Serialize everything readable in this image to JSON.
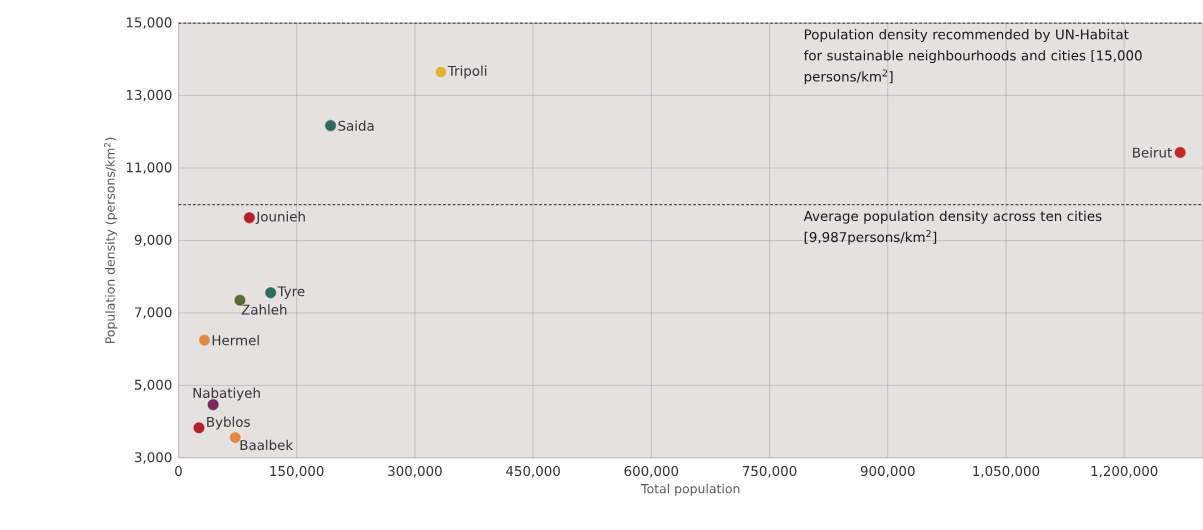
{
  "chart_data": {
    "type": "scatter",
    "xlabel": "Total population",
    "ylabel": "Population density (persons/km$^{2}$)",
    "xlim": [
      0,
      1300000
    ],
    "ylim": [
      3000,
      15000
    ],
    "xticks": [
      {
        "value": 0,
        "label": "0"
      },
      {
        "value": 150000,
        "label": "150,000"
      },
      {
        "value": 300000,
        "label": "300,000"
      },
      {
        "value": 450000,
        "label": "450,000"
      },
      {
        "value": 600000,
        "label": "600,000"
      },
      {
        "value": 750000,
        "label": "750,000"
      },
      {
        "value": 900000,
        "label": "900,000"
      },
      {
        "value": 1050000,
        "label": "1,050,000"
      },
      {
        "value": 1200000,
        "label": "1,200,000"
      }
    ],
    "yticks": [
      {
        "value": 3000,
        "label": "3,000"
      },
      {
        "value": 5000,
        "label": "5,000"
      },
      {
        "value": 7000,
        "label": "7,000"
      },
      {
        "value": 9000,
        "label": "9,000"
      },
      {
        "value": 11000,
        "label": "11,000"
      },
      {
        "value": 13000,
        "label": "13,000"
      },
      {
        "value": 15000,
        "label": "15,000"
      }
    ],
    "grid": true,
    "marker": "circle",
    "series": [
      {
        "name": "Tripoli",
        "color": "#e0b43c",
        "x": [
          333000
        ],
        "values": [
          13650
        ]
      },
      {
        "name": "Saida",
        "color": "#2f6b5e",
        "x": [
          193000
        ],
        "values": [
          12170
        ]
      },
      {
        "name": "Beirut",
        "color": "#c0262c",
        "x": [
          1271000
        ],
        "values": [
          11430
        ]
      },
      {
        "name": "Jounieh",
        "color": "#b3202a",
        "x": [
          90000
        ],
        "values": [
          9630
        ]
      },
      {
        "name": "Tyre",
        "color": "#2f6b5e",
        "x": [
          117000
        ],
        "values": [
          7560
        ]
      },
      {
        "name": "Zahleh",
        "color": "#5a6b3a",
        "x": [
          78000
        ],
        "values": [
          7350
        ]
      },
      {
        "name": "Hermel",
        "color": "#e08a4a",
        "x": [
          33000
        ],
        "values": [
          6250
        ]
      },
      {
        "name": "Nabatiyeh",
        "color": "#7a2a5a",
        "x": [
          44000
        ],
        "values": [
          4470
        ]
      },
      {
        "name": "Byblos",
        "color": "#b3202a",
        "x": [
          26000
        ],
        "values": [
          3830
        ]
      },
      {
        "name": "Baalbek",
        "color": "#e08a4a",
        "x": [
          72000
        ],
        "values": [
          3560
        ]
      }
    ],
    "ref_lines": [
      {
        "axis": "y",
        "value": 15000,
        "label": "Population density recommended by UN-Habitat for sustainable neighbourhoods and cities [15,000 persons/km$^{2}$]",
        "color": "#000000",
        "line_style": "dashed"
      },
      {
        "axis": "y",
        "value": 9987,
        "label": "Average population density across ten cities [9,987persons/km$^{2}$]",
        "color": "#000000",
        "line_style": "dashed"
      }
    ]
  }
}
